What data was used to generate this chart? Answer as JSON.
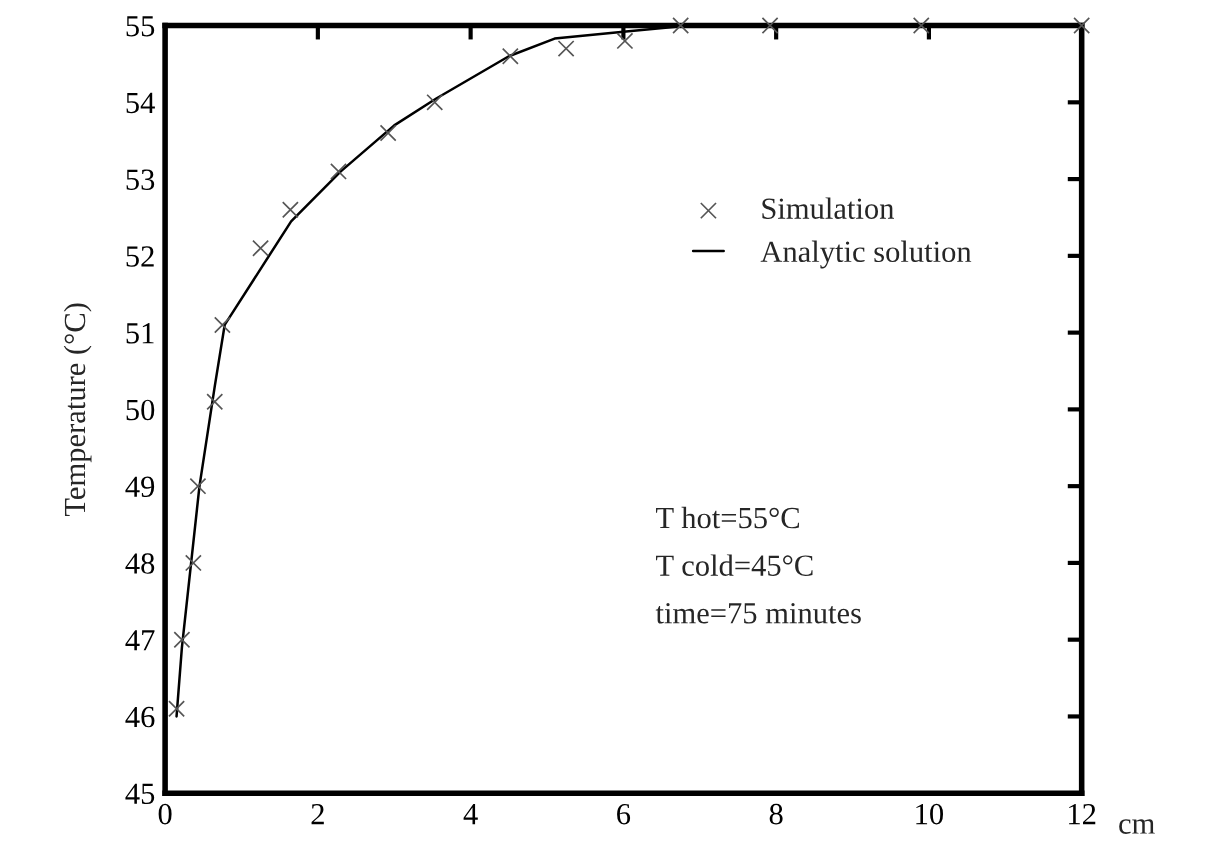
{
  "chart_data": {
    "type": "scatter",
    "xlabel": "cm",
    "ylabel": "Temperature (°C)",
    "xlim": [
      0,
      12
    ],
    "ylim": [
      45,
      55
    ],
    "xticks": [
      0,
      2,
      4,
      6,
      8,
      10,
      12
    ],
    "yticks": [
      45,
      46,
      47,
      48,
      49,
      50,
      51,
      52,
      53,
      54,
      55
    ],
    "grid": false,
    "legend": "right",
    "series": [
      {
        "name": "Simulation",
        "type": "scatter",
        "marker": "cross",
        "color": "#555555",
        "x": [
          0.15,
          0.22,
          0.37,
          0.43,
          0.65,
          0.75,
          1.25,
          1.64,
          2.27,
          2.92,
          3.53,
          4.52,
          5.25,
          6.02,
          6.75,
          7.92,
          9.9,
          12
        ],
        "values": [
          46.1,
          47.0,
          48.0,
          49.0,
          50.1,
          51.1,
          52.1,
          52.6,
          53.1,
          53.6,
          54.0,
          54.6,
          54.7,
          54.8,
          55,
          55,
          55,
          55
        ]
      },
      {
        "name": "Analytic solution",
        "type": "line",
        "marker": "none",
        "line_style": "solid",
        "color": "#000000",
        "x": [
          0.15,
          0.22,
          0.45,
          0.65,
          0.78,
          1.65,
          2.3,
          3.0,
          3.55,
          4.5,
          5.1,
          6.0,
          6.86,
          8,
          10,
          12
        ],
        "values": [
          46.0,
          46.9,
          49.0,
          50.3,
          51.1,
          52.45,
          53.1,
          53.7,
          54.05,
          54.6,
          54.83,
          54.92,
          55,
          55,
          55,
          55
        ]
      }
    ],
    "annotations": [
      "T hot=55°C",
      "T cold=45°C",
      "time=75 minutes"
    ]
  }
}
